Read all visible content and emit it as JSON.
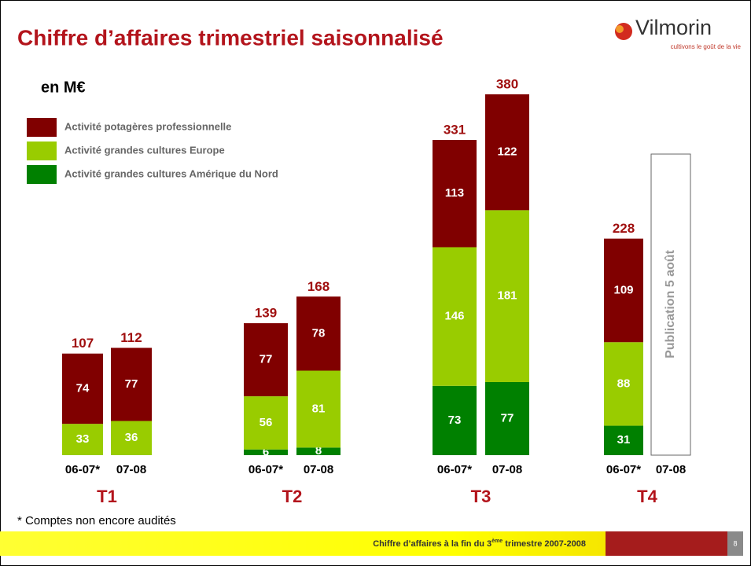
{
  "chart_data": {
    "type": "bar",
    "stacked": true,
    "title": "Chiffre d’affaires trimestriel saisonnalisé",
    "unit_label": "en M€",
    "groups": [
      "T1",
      "T2",
      "T3",
      "T4"
    ],
    "categories": [
      "06-07*",
      "07-08",
      "06-07*",
      "07-08",
      "06-07*",
      "07-08",
      "06-07*",
      "07-08"
    ],
    "series": [
      {
        "name": "Activité grandes cultures Amérique du Nord",
        "color": "#008000",
        "values": [
          null,
          null,
          6,
          8,
          73,
          77,
          31,
          null
        ]
      },
      {
        "name": "Activité grandes cultures Europe",
        "color": "#99cc00",
        "values": [
          33,
          36,
          56,
          81,
          146,
          181,
          88,
          null
        ]
      },
      {
        "name": "Activité potagères professionnelle",
        "color": "#800000",
        "values": [
          74,
          77,
          77,
          78,
          113,
          122,
          109,
          null
        ]
      }
    ],
    "totals": [
      107,
      112,
      139,
      168,
      331,
      380,
      228,
      null
    ],
    "annotation": "Publication 5 août",
    "footnote": "* Comptes non encore audités"
  },
  "logo": {
    "name": "Vilmorin",
    "tagline": "cultivons le goût de la vie"
  },
  "footer": {
    "text": [
      "Chiffre d’affaires à la fin du 3",
      "ème",
      " trimestre 2007-2008"
    ],
    "page": "8"
  }
}
